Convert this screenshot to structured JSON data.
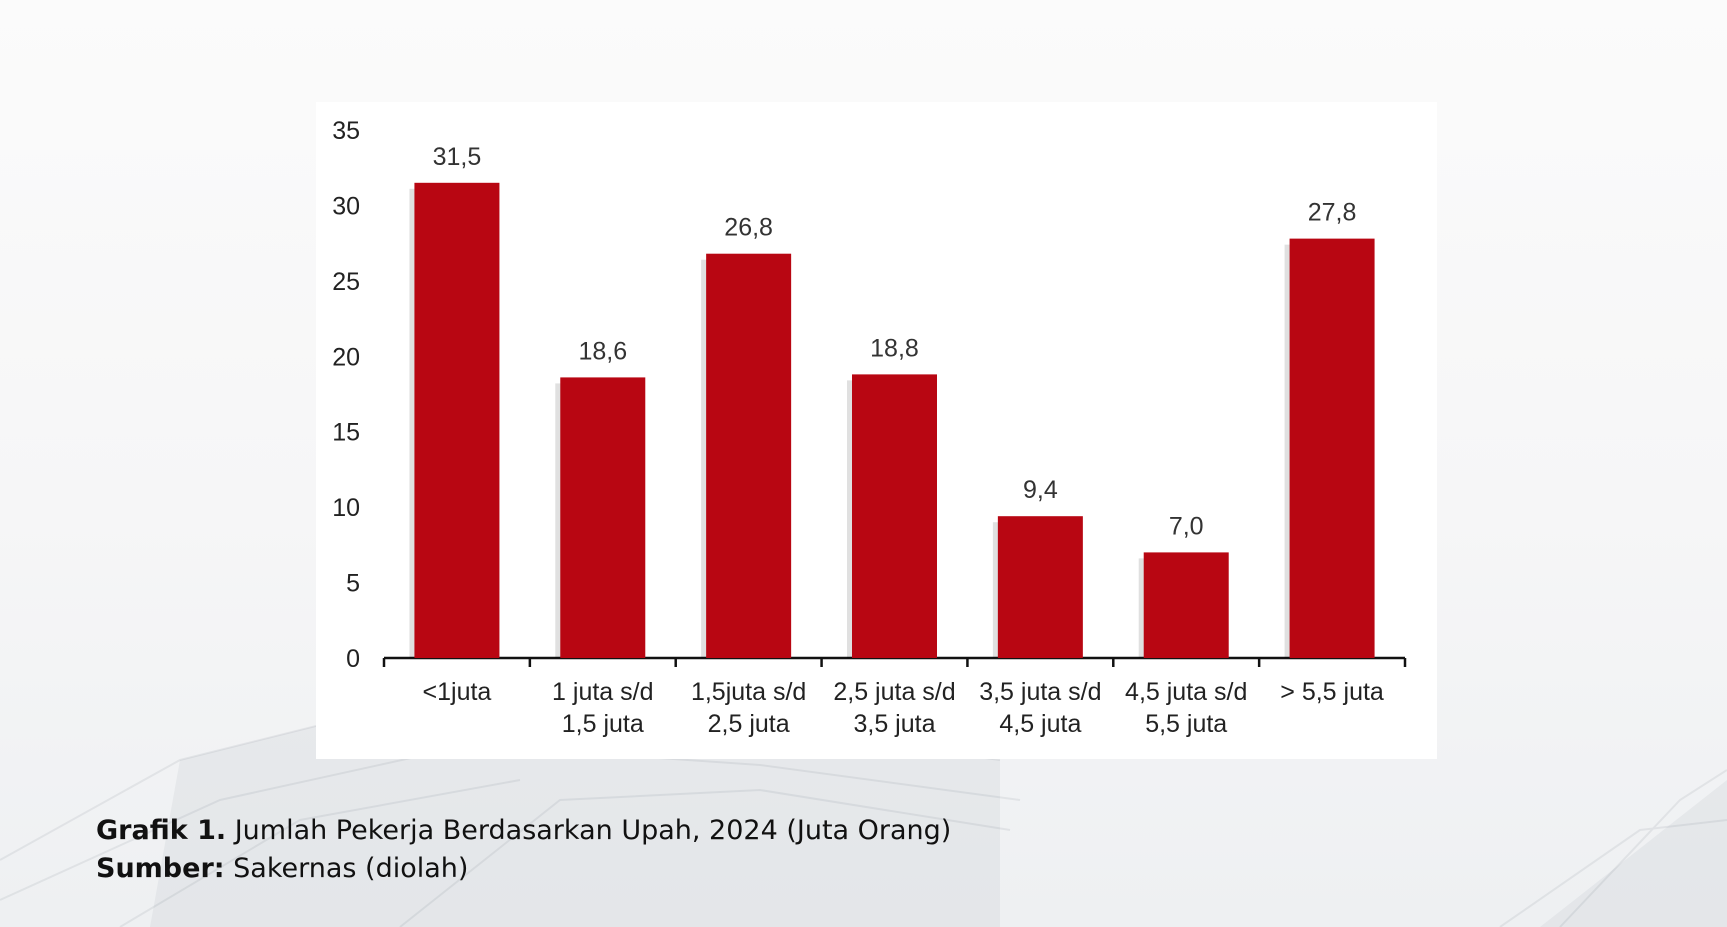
{
  "chart_data": {
    "type": "bar",
    "categories": [
      [
        "<1juta"
      ],
      [
        "1 juta s/d",
        "1,5 juta"
      ],
      [
        "1,5juta s/d",
        "2,5 juta"
      ],
      [
        "2,5 juta s/d",
        "3,5 juta"
      ],
      [
        "3,5 juta s/d",
        "4,5 juta"
      ],
      [
        "4,5 juta s/d",
        "5,5 juta"
      ],
      [
        "> 5,5 juta"
      ]
    ],
    "values": [
      31.5,
      18.6,
      26.8,
      18.8,
      9.4,
      7.0,
      27.8
    ],
    "value_labels": [
      "31,5",
      "18,6",
      "26,8",
      "18,8",
      "9,4",
      "7,0",
      "27,8"
    ],
    "ylim": [
      0,
      35
    ],
    "yticks": [
      0,
      5,
      10,
      15,
      20,
      25,
      30,
      35
    ],
    "bar_color": "#b80612",
    "grid": false,
    "legend": "none"
  },
  "caption": {
    "title_prefix": "Grafik 1.",
    "title_text": " Jumlah Pekerja Berdasarkan Upah, 2024 (Juta Orang)",
    "source_prefix": "Sumber:",
    "source_text": " Sakernas (diolah)"
  }
}
